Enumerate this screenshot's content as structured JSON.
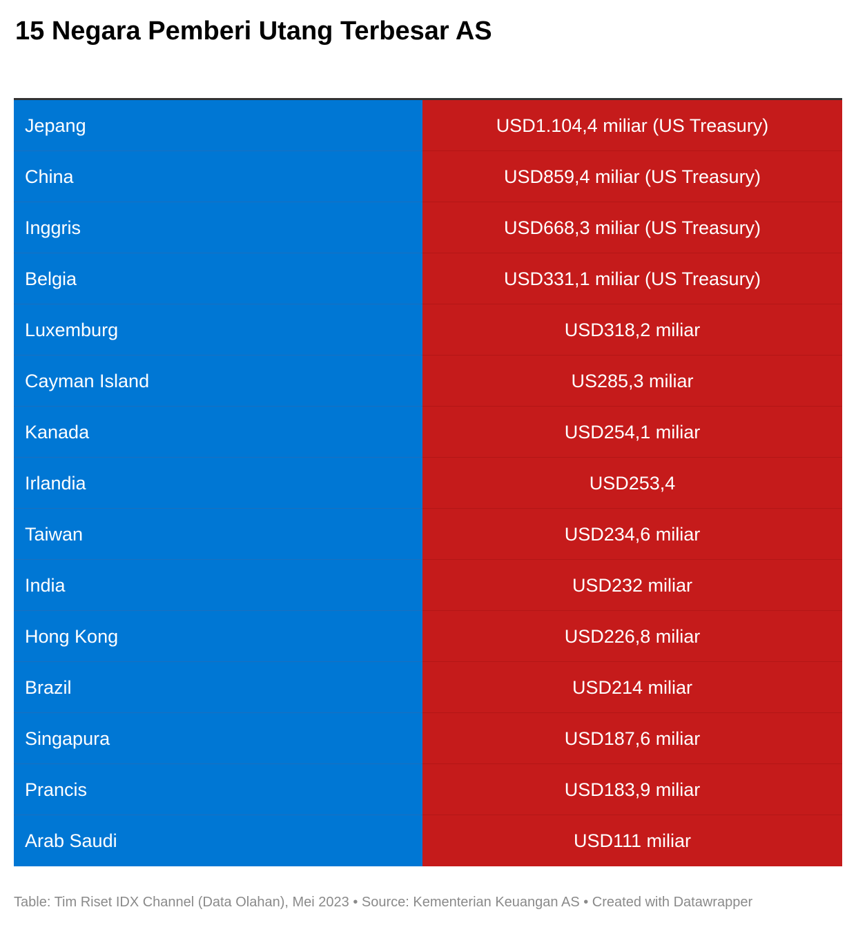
{
  "chart_data": {
    "type": "table",
    "title": "15 Negara Pemberi Utang Terbesar AS",
    "rows": [
      {
        "country": "Jepang",
        "value": "USD1.104,4 miliar (US Treasury)"
      },
      {
        "country": "China",
        "value": "USD859,4 miliar (US Treasury)"
      },
      {
        "country": "Inggris",
        "value": "USD668,3 miliar (US Treasury)"
      },
      {
        "country": "Belgia",
        "value": "USD331,1 miliar (US Treasury)"
      },
      {
        "country": "Luxemburg",
        "value": "USD318,2 miliar"
      },
      {
        "country": "Cayman Island",
        "value": "US285,3 miliar"
      },
      {
        "country": "Kanada",
        "value": "USD254,1 miliar"
      },
      {
        "country": "Irlandia",
        "value": "USD253,4"
      },
      {
        "country": "Taiwan",
        "value": "USD234,6 miliar"
      },
      {
        "country": "India",
        "value": "USD232 miliar"
      },
      {
        "country": "Hong Kong",
        "value": "USD226,8 miliar"
      },
      {
        "country": "Brazil",
        "value": "USD214 miliar"
      },
      {
        "country": "Singapura",
        "value": "USD187,6 miliar"
      },
      {
        "country": "Prancis",
        "value": "USD183,9 miliar"
      },
      {
        "country": "Arab Saudi",
        "value": "USD111 miliar"
      }
    ],
    "footer": "Table: Tim Riset IDX Channel (Data Olahan), Mei 2023 • Source: Kementerian Keuangan AS • Created with Datawrapper"
  },
  "colors": {
    "country_column": "#0077d4",
    "value_column": "#c51b1b",
    "text": "#ffffff",
    "footer_text": "#8a8a8a"
  }
}
